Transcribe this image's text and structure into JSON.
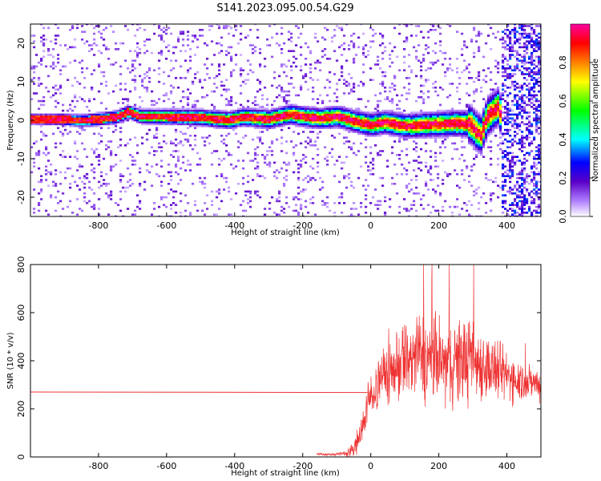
{
  "title": "S141.2023.095.00.54.G29",
  "chart_data": [
    {
      "type": "heatmap",
      "xlabel": "Height of straight line (km)",
      "ylabel": "Frequency (Hz)",
      "xlim": [
        -1000,
        500
      ],
      "ylim": [
        -25,
        25
      ],
      "x_ticks": [
        -800,
        -600,
        -400,
        -200,
        0,
        200,
        400
      ],
      "x_tick_labels": [
        "-800",
        "-600",
        "-400",
        "-200",
        "0",
        "200",
        "400"
      ],
      "y_ticks": [
        -20,
        -10,
        0,
        10,
        20
      ],
      "y_tick_labels": [
        "-20",
        "-10",
        "0",
        "10",
        "20"
      ],
      "colorbar": {
        "label": "Normalized spectral amplitude",
        "range": [
          0,
          1
        ],
        "ticks": [
          0.0,
          0.2,
          0.4,
          0.6,
          0.8
        ],
        "tick_labels": [
          "0.0",
          "0.2",
          "0.4",
          "0.6",
          "0.8"
        ],
        "colormap": [
          "#ffffff",
          "#5a00c8",
          "#0000ff",
          "#00ffff",
          "#00ff00",
          "#ffff00",
          "#ff8000",
          "#ff0000",
          "#ff00a0"
        ]
      },
      "ridge_center": [
        {
          "x": -1000,
          "y": 0.3
        },
        {
          "x": -900,
          "y": 0.2
        },
        {
          "x": -850,
          "y": -0.1
        },
        {
          "x": -800,
          "y": 0.3
        },
        {
          "x": -750,
          "y": 0.8
        },
        {
          "x": -715,
          "y": 2.2
        },
        {
          "x": -680,
          "y": 1.0
        },
        {
          "x": -600,
          "y": 0.9
        },
        {
          "x": -500,
          "y": 0.7
        },
        {
          "x": -420,
          "y": 0.0
        },
        {
          "x": -380,
          "y": 0.8
        },
        {
          "x": -300,
          "y": 0.3
        },
        {
          "x": -240,
          "y": 1.5
        },
        {
          "x": -180,
          "y": 0.7
        },
        {
          "x": -150,
          "y": 0.5
        },
        {
          "x": -100,
          "y": 1.0
        },
        {
          "x": -40,
          "y": -0.5
        },
        {
          "x": 0,
          "y": -1.2
        },
        {
          "x": 40,
          "y": -0.5
        },
        {
          "x": 100,
          "y": -1.5
        },
        {
          "x": 150,
          "y": -1.2
        },
        {
          "x": 200,
          "y": -1.0
        },
        {
          "x": 250,
          "y": -0.8
        },
        {
          "x": 290,
          "y": -1.0
        },
        {
          "x": 320,
          "y": -4.0
        },
        {
          "x": 340,
          "y": 1.0
        },
        {
          "x": 370,
          "y": 3.5
        },
        {
          "x": 390,
          "y": -1.0
        }
      ],
      "noise_region_start": 380
    },
    {
      "type": "line",
      "xlabel": "Height of straight line (km)",
      "ylabel": "SNR (10 * v/v)",
      "xlim": [
        -1000,
        500
      ],
      "ylim": [
        0,
        800
      ],
      "x_ticks": [
        -800,
        -600,
        -400,
        -200,
        0,
        200,
        400
      ],
      "x_tick_labels": [
        "-800",
        "-600",
        "-400",
        "-200",
        "0",
        "200",
        "400"
      ],
      "y_ticks": [
        0,
        200,
        400,
        600,
        800
      ],
      "y_tick_labels": [
        "0",
        "200",
        "400",
        "600",
        "800"
      ],
      "color": "#ee3333",
      "series": [
        {
          "x": [
            -1000,
            -10
          ],
          "y": [
            270,
            268
          ]
        },
        {
          "x": [
            -160,
            -120,
            -80,
            -50,
            -40,
            -30,
            -20,
            -10,
            0,
            10,
            20,
            40,
            60,
            80,
            100,
            120,
            140,
            160,
            180,
            200,
            220,
            240,
            260,
            280,
            300,
            320,
            340,
            360,
            380,
            400,
            420,
            440,
            460,
            480,
            500
          ],
          "y": [
            12,
            10,
            14,
            30,
            60,
            110,
            150,
            210,
            250,
            280,
            300,
            340,
            360,
            380,
            400,
            410,
            420,
            410,
            400,
            400,
            380,
            390,
            400,
            410,
            400,
            390,
            380,
            360,
            350,
            340,
            330,
            320,
            310,
            310,
            300
          ],
          "spread": [
            5,
            5,
            8,
            30,
            50,
            60,
            70,
            80,
            80,
            90,
            100,
            120,
            130,
            140,
            150,
            160,
            170,
            170,
            170,
            160,
            150,
            160,
            170,
            170,
            150,
            140,
            130,
            120,
            110,
            100,
            90,
            80,
            70,
            60,
            60
          ]
        }
      ]
    }
  ]
}
